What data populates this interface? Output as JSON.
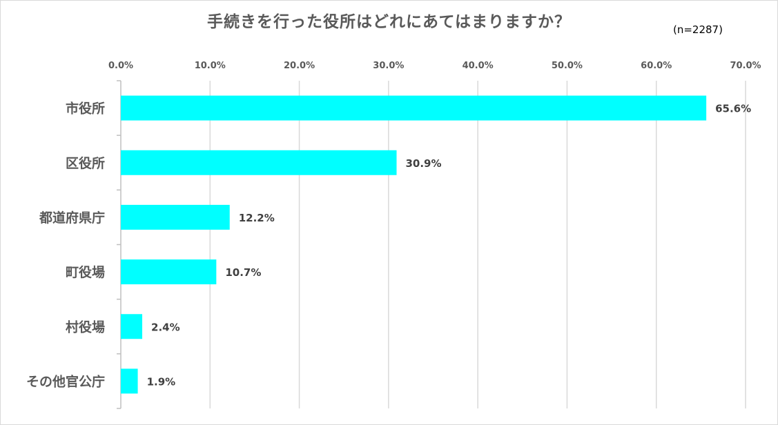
{
  "chart_data": {
    "type": "bar",
    "orientation": "horizontal",
    "title": "手続きを行った役所はどれにあてはまりますか？",
    "subtitle": "(n=2287)",
    "categories": [
      "市役所",
      "区役所",
      "都道府県庁",
      "町役場",
      "村役場",
      "その他官公庁"
    ],
    "values": [
      65.6,
      30.9,
      12.2,
      10.7,
      2.4,
      1.9
    ],
    "value_labels": [
      "65.6%",
      "30.9%",
      "12.2%",
      "10.7%",
      "2.4%",
      "1.9%"
    ],
    "xlim": [
      0,
      70
    ],
    "x_ticks": [
      "0.0%",
      "10.0%",
      "20.0%",
      "30.0%",
      "40.0%",
      "50.0%",
      "60.0%",
      "70.0%"
    ],
    "x_axis_position": "top",
    "grid": true,
    "bar_color": "#00FFFF"
  }
}
